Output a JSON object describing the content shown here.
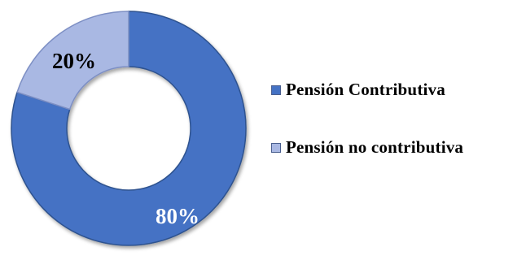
{
  "chart_data": {
    "type": "pie",
    "donut": true,
    "title": "",
    "categories": [
      "Pensión Contributiva",
      "Pensión no contributiva"
    ],
    "values": [
      80,
      20
    ],
    "data_labels": [
      "80%",
      "20%"
    ],
    "colors": [
      "#4472c4",
      "#a9b8e3"
    ],
    "legend_position": "right"
  }
}
